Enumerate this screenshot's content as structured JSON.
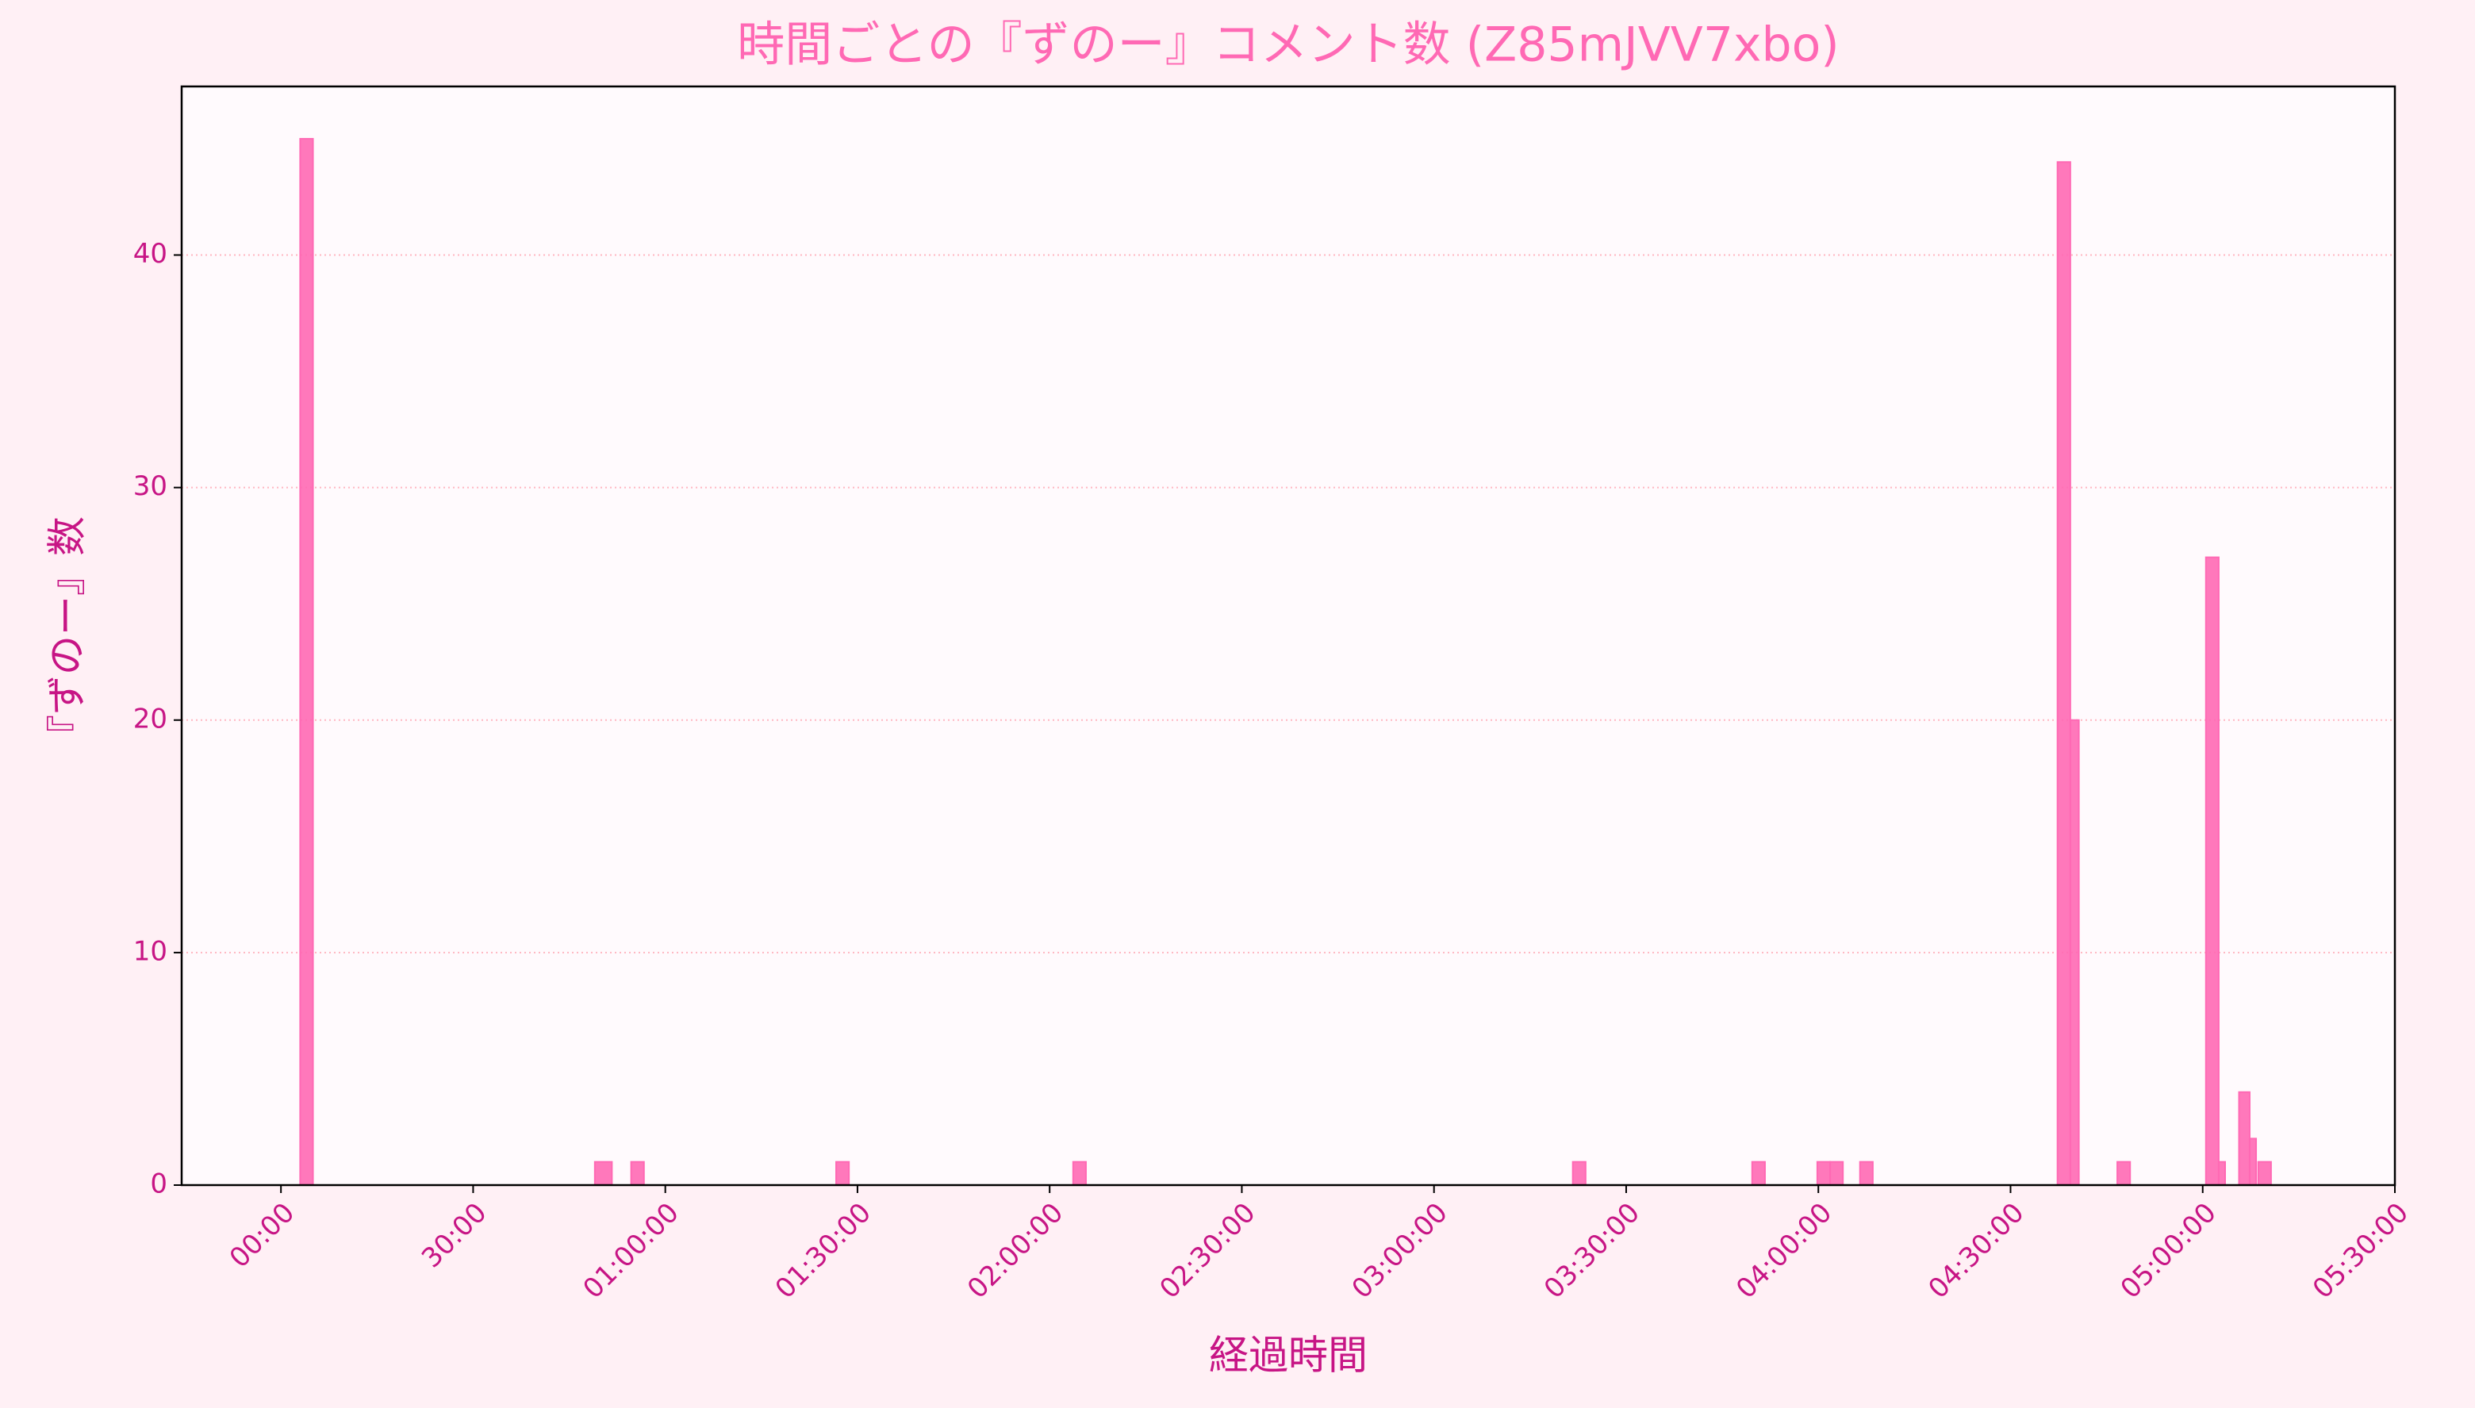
{
  "chart_data": {
    "type": "histogram",
    "title": "時間ごとの『ずのー』コメント数 (Z85mJVV7xbo)",
    "xlabel": "経過時間",
    "ylabel": "『ずのー』数",
    "bins": [
      0,
      180,
      300,
      2940,
      3100,
      3280,
      3400,
      5200,
      5320,
      7420,
      7540,
      12100,
      12220,
      13780,
      13900,
      14390,
      14510,
      14630,
      14790,
      14910,
      16640,
      16760,
      16840,
      17200,
      17320,
      18030,
      18150,
      18210,
      18340,
      18440,
      18500,
      18520,
      18640,
      18840
    ],
    "values": [
      0,
      45,
      0,
      1,
      0,
      1,
      0,
      1,
      0,
      1,
      0,
      1,
      0,
      1,
      0,
      1,
      1,
      0,
      1,
      0,
      44,
      20,
      0,
      1,
      0,
      27,
      1,
      0,
      4,
      2,
      0,
      1,
      0
    ],
    "color": "#ff69b4",
    "xlim": [
      -930,
      19800
    ],
    "xticks": [
      {
        "value": 0,
        "label": "00:00"
      },
      {
        "value": 1800,
        "label": "30:00"
      },
      {
        "value": 3600,
        "label": "01:00:00"
      },
      {
        "value": 5400,
        "label": "01:30:00"
      },
      {
        "value": 7200,
        "label": "02:00:00"
      },
      {
        "value": 9000,
        "label": "02:30:00"
      },
      {
        "value": 10800,
        "label": "03:00:00"
      },
      {
        "value": 12600,
        "label": "03:30:00"
      },
      {
        "value": 14400,
        "label": "04:00:00"
      },
      {
        "value": 16200,
        "label": "04:30:00"
      },
      {
        "value": 18000,
        "label": "05:00:00"
      },
      {
        "value": 19800,
        "label": "05:30:00"
      }
    ],
    "ylim": [
      0,
      47.25
    ],
    "yticks": [
      0,
      10,
      20,
      30,
      40
    ],
    "grid": true
  }
}
